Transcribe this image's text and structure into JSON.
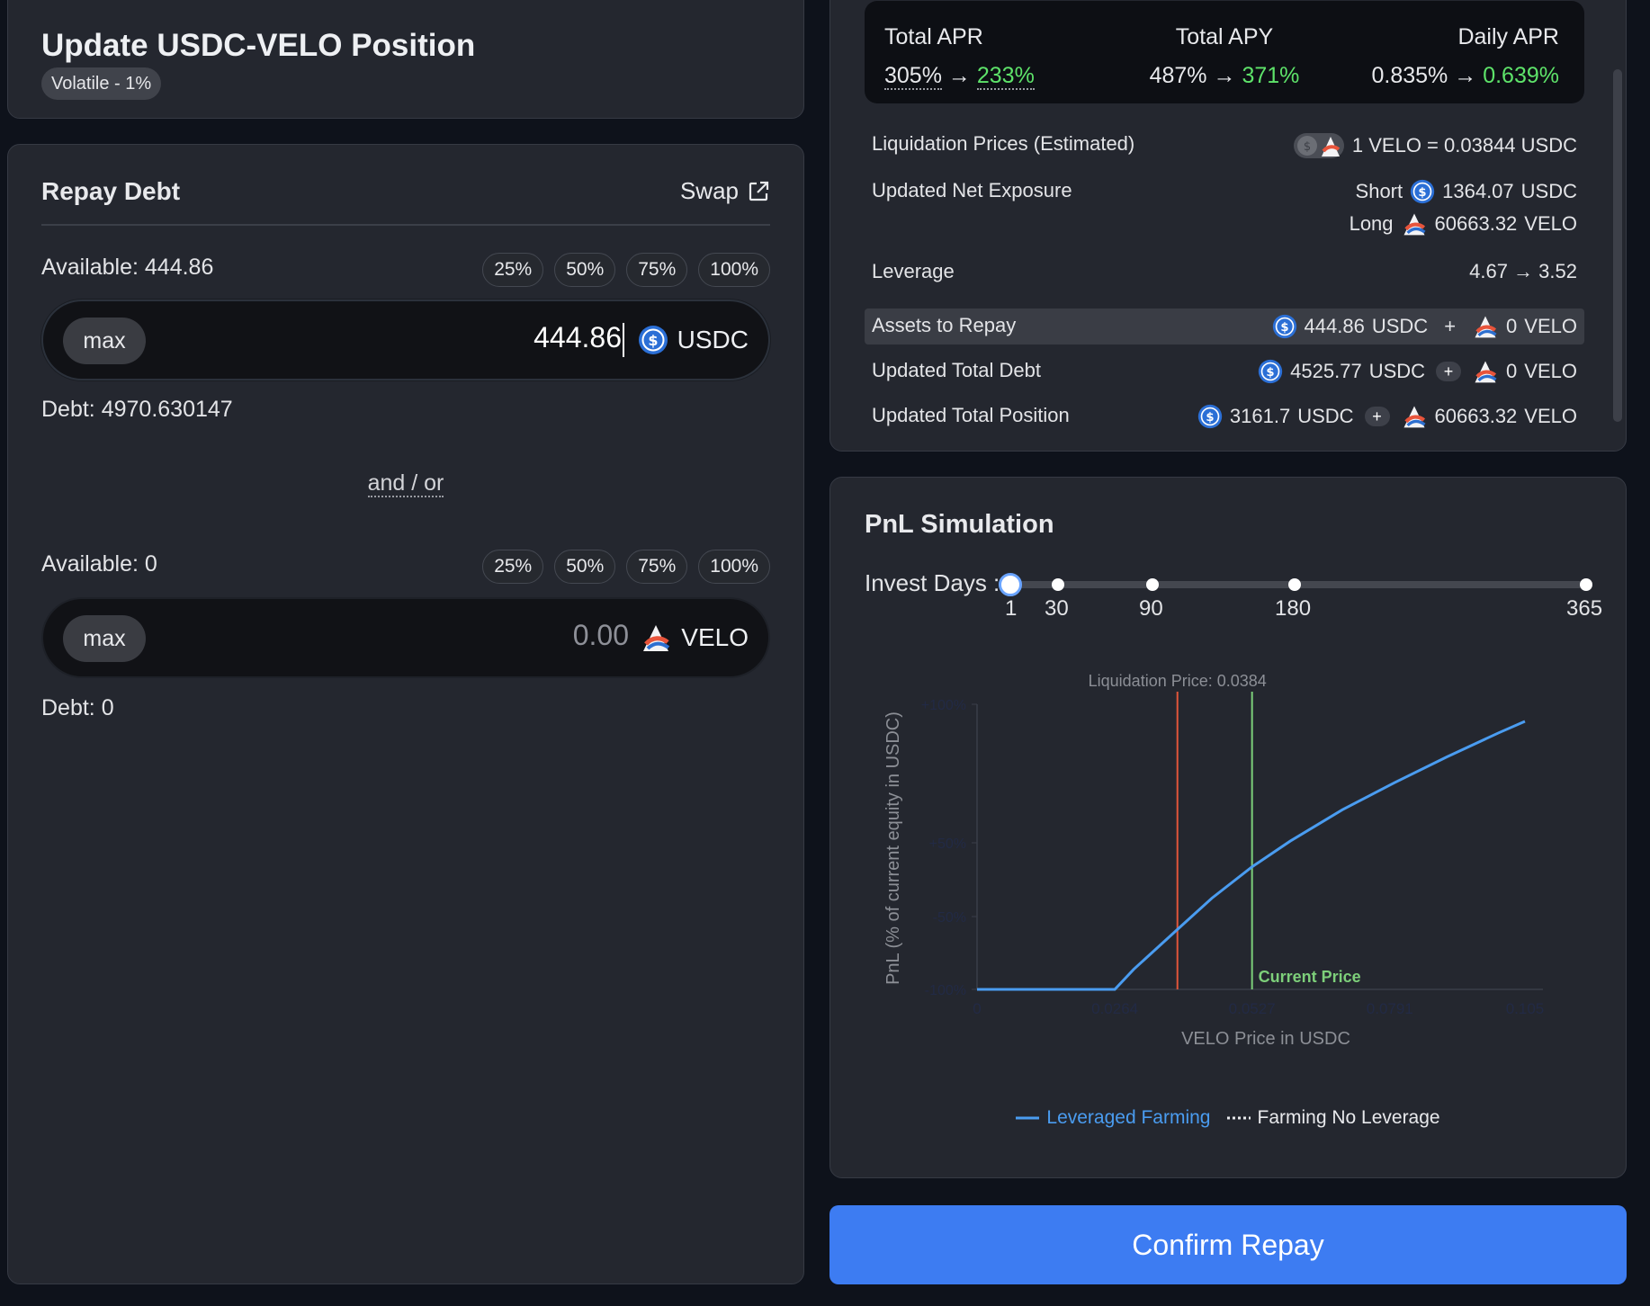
{
  "header": {
    "title": "Update USDC-VELO Position",
    "pool_type": "Volatile - 1%"
  },
  "repay": {
    "title": "Repay Debt",
    "swap_label": "Swap",
    "usdc": {
      "available": "Available: 444.86",
      "percentages": [
        "25%",
        "50%",
        "75%",
        "100%"
      ],
      "max_label": "max",
      "amount": "444.86",
      "token": "USDC",
      "debt": "Debt: 4970.630147"
    },
    "and_or": "and / or",
    "velo": {
      "available": "Available: 0",
      "percentages": [
        "25%",
        "50%",
        "75%",
        "100%"
      ],
      "max_label": "max",
      "amount": "0.00",
      "token": "VELO",
      "debt": "Debt: 0"
    }
  },
  "stats": {
    "total_apr": {
      "label": "Total APR",
      "from": "305%",
      "to": "233%"
    },
    "total_apy": {
      "label": "Total APY",
      "from": "487%",
      "to": "371%"
    },
    "daily_apr": {
      "label": "Daily APR",
      "from": "0.835%",
      "to": "0.639%"
    },
    "arrow": "→",
    "liquidation": {
      "label": "Liquidation Prices (Estimated)",
      "value": "1 VELO = 0.03844 USDC"
    },
    "net_exposure": {
      "label": "Updated Net Exposure",
      "short_label": "Short",
      "short_value": "1364.07",
      "short_token": "USDC",
      "long_label": "Long",
      "long_value": "60663.32",
      "long_token": "VELO"
    },
    "leverage": {
      "label": "Leverage",
      "value": "4.67 → 3.52"
    },
    "assets_to_repay": {
      "label": "Assets to Repay",
      "usdc": "444.86",
      "usdc_token": "USDC",
      "plus": "+",
      "velo": "0",
      "velo_token": "VELO"
    },
    "total_debt": {
      "label": "Updated Total Debt",
      "usdc": "4525.77",
      "usdc_token": "USDC",
      "plus": "+",
      "velo": "0",
      "velo_token": "VELO"
    },
    "total_position": {
      "label": "Updated Total Position",
      "usdc": "3161.7",
      "usdc_token": "USDC",
      "plus": "+",
      "velo": "60663.32",
      "velo_token": "VELO"
    }
  },
  "pnl": {
    "title": "PnL Simulation",
    "invest_days_label": "Invest Days :",
    "invest_days_options": [
      "1",
      "30",
      "90",
      "180",
      "365"
    ],
    "invest_days_selected": "1",
    "legend_leveraged": "Leveraged Farming",
    "legend_no_leverage": "Farming No Leverage",
    "confirm_label": "Confirm Repay"
  },
  "chart_data": {
    "type": "line",
    "title": "",
    "xlabel": "VELO Price in USDC",
    "ylabel": "PnL (% of current equity in USDC)",
    "x_ticks": [
      "0",
      "0.0264",
      "0.0527",
      "0.0791",
      "0.105"
    ],
    "y_ticks": [
      "-100%",
      "-50%",
      "+50%",
      "+100%"
    ],
    "xlim": [
      0,
      0.105
    ],
    "ylim": [
      -100,
      100
    ],
    "annotations": [
      {
        "label": "Liquidation Price: 0.0384",
        "x": 0.0384,
        "color": "#e2553a"
      },
      {
        "label": "Current Price",
        "x": 0.0527,
        "color": "#7dcf7a"
      }
    ],
    "series": [
      {
        "name": "Leveraged Farming",
        "color": "#4a9cf0",
        "points": [
          [
            0,
            -100
          ],
          [
            0.0264,
            -100
          ],
          [
            0.03,
            -86
          ],
          [
            0.0384,
            -58
          ],
          [
            0.045,
            -36
          ],
          [
            0.0527,
            -14
          ],
          [
            0.06,
            4
          ],
          [
            0.07,
            26
          ],
          [
            0.08,
            45
          ],
          [
            0.09,
            63
          ],
          [
            0.1,
            80
          ],
          [
            0.105,
            88
          ]
        ]
      }
    ],
    "grid": false,
    "legend_position": "bottom"
  },
  "colors": {
    "accent": "#3d7cf2",
    "positive": "#5ee36a",
    "background": "#0e121b",
    "card": "#24272f"
  },
  "icons": {
    "usdc": "usdc-token-icon",
    "velo": "velo-token-icon",
    "external": "external-link-icon"
  }
}
